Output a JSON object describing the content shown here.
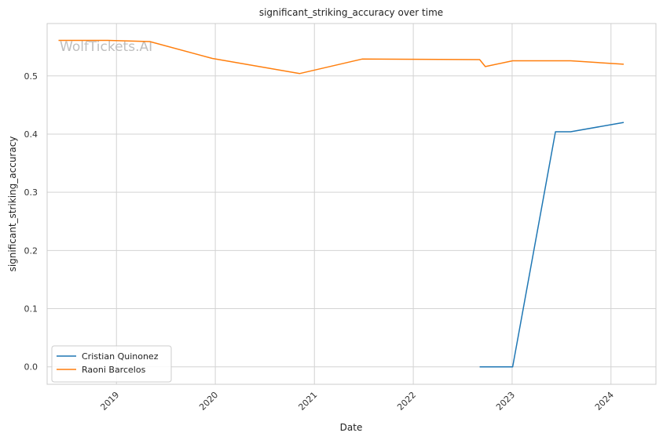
{
  "chart_data": {
    "type": "line",
    "title": "significant_striking_accuracy over time",
    "xlabel": "Date",
    "ylabel": "significant_striking_accuracy",
    "watermark": "WolfTickets.AI",
    "x_ticks": [
      "2019",
      "2020",
      "2021",
      "2022",
      "2023",
      "2024"
    ],
    "y_ticks": [
      "0.0",
      "0.1",
      "0.2",
      "0.3",
      "0.4",
      "0.5"
    ],
    "xlim": [
      "2018-04-20",
      "2024-06-15"
    ],
    "ylim": [
      -0.03,
      0.59
    ],
    "grid": true,
    "legend_position": "lower-left",
    "series": [
      {
        "name": "Cristian Quinonez",
        "color": "#1f77b4",
        "points": [
          {
            "x": "2022-09-03",
            "y": 0.0
          },
          {
            "x": "2023-01-03",
            "y": 0.0
          },
          {
            "x": "2023-06-10",
            "y": 0.404
          },
          {
            "x": "2023-08-05",
            "y": 0.404
          },
          {
            "x": "2024-02-17",
            "y": 0.42
          }
        ]
      },
      {
        "name": "Raoni Barcelos",
        "color": "#ff7f0e",
        "points": [
          {
            "x": "2018-06-01",
            "y": 0.561
          },
          {
            "x": "2018-12-01",
            "y": 0.561
          },
          {
            "x": "2019-05-04",
            "y": 0.559
          },
          {
            "x": "2019-12-21",
            "y": 0.53
          },
          {
            "x": "2020-11-07",
            "y": 0.504
          },
          {
            "x": "2021-06-26",
            "y": 0.529
          },
          {
            "x": "2022-09-03",
            "y": 0.528
          },
          {
            "x": "2022-09-24",
            "y": 0.516
          },
          {
            "x": "2023-01-03",
            "y": 0.526
          },
          {
            "x": "2023-08-05",
            "y": 0.526
          },
          {
            "x": "2024-02-17",
            "y": 0.52
          }
        ]
      }
    ]
  }
}
